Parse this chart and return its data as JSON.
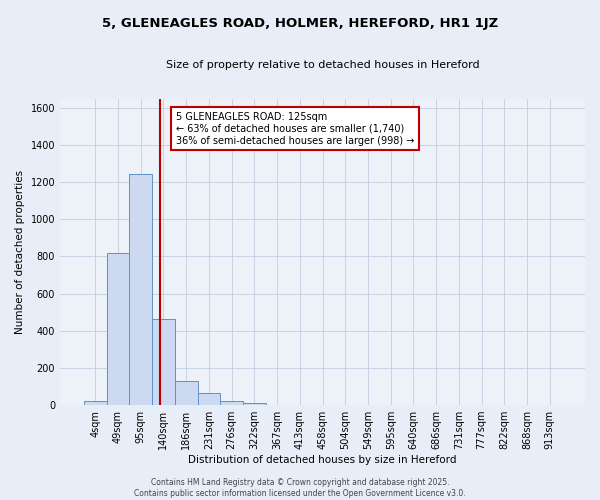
{
  "title": "5, GLENEAGLES ROAD, HOLMER, HEREFORD, HR1 1JZ",
  "subtitle": "Size of property relative to detached houses in Hereford",
  "xlabel": "Distribution of detached houses by size in Hereford",
  "ylabel": "Number of detached properties",
  "bar_labels": [
    "4sqm",
    "49sqm",
    "95sqm",
    "140sqm",
    "186sqm",
    "231sqm",
    "276sqm",
    "322sqm",
    "367sqm",
    "413sqm",
    "458sqm",
    "504sqm",
    "549sqm",
    "595sqm",
    "640sqm",
    "686sqm",
    "731sqm",
    "777sqm",
    "822sqm",
    "868sqm",
    "913sqm"
  ],
  "bar_values": [
    20,
    820,
    1245,
    465,
    128,
    65,
    20,
    12,
    0,
    0,
    0,
    0,
    0,
    0,
    0,
    0,
    0,
    0,
    0,
    0,
    0
  ],
  "bar_color": "#ccd9f0",
  "bar_edge_color": "#6090c8",
  "vline_x": 2.85,
  "vline_color": "#bb0000",
  "ylim": [
    0,
    1650
  ],
  "yticks": [
    0,
    200,
    400,
    600,
    800,
    1000,
    1200,
    1400,
    1600
  ],
  "annotation_text": "5 GLENEAGLES ROAD: 125sqm\n← 63% of detached houses are smaller (1,740)\n36% of semi-detached houses are larger (998) →",
  "annotation_box_color": "#ffffff",
  "annotation_box_edge": "#bb0000",
  "footer_line1": "Contains HM Land Registry data © Crown copyright and database right 2025.",
  "footer_line2": "Contains public sector information licensed under the Open Government Licence v3.0.",
  "background_color": "#e8eef8",
  "plot_bg_color": "#edf1f8",
  "title_fontsize": 9.5,
  "subtitle_fontsize": 8,
  "axis_label_fontsize": 7.5,
  "tick_fontsize": 7,
  "footer_fontsize": 5.5
}
